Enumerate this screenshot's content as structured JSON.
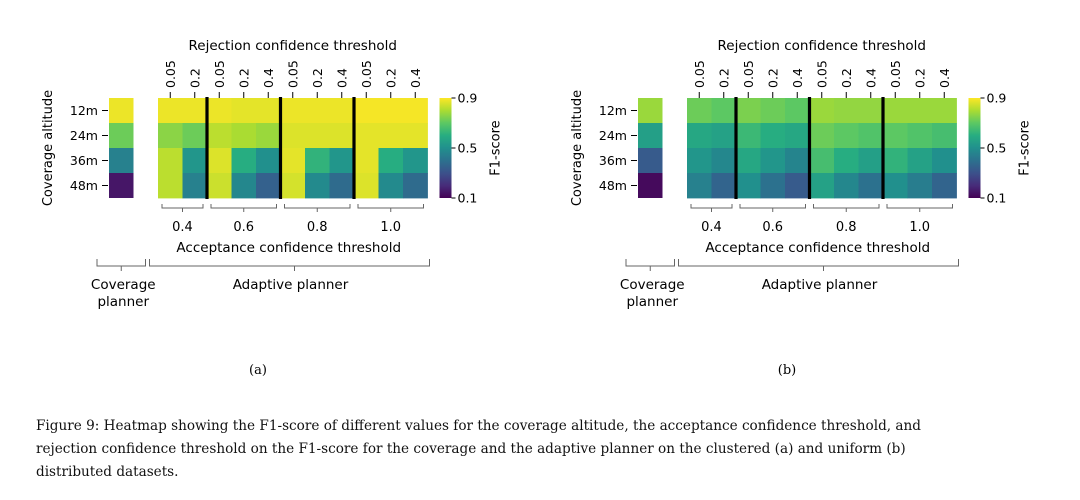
{
  "chart_data": [
    {
      "type": "heatmap",
      "panel_label": "(a)",
      "ylabel": "Coverage altitude",
      "y_categories": [
        "12m",
        "24m",
        "36m",
        "48m"
      ],
      "rejection_title": "Rejection confidence threshold",
      "acceptance_title": "Acceptance confidence threshold",
      "colorbar_label": "F1-score",
      "colorbar_ticks": [
        "0.9",
        "0.5",
        "0.1"
      ],
      "vmin": 0.1,
      "vmax": 0.9,
      "coverage_label_line1": "Coverage",
      "coverage_label_line2": "planner",
      "adaptive_label": "Adaptive planner",
      "coverage_values": [
        0.88,
        0.72,
        0.45,
        0.15
      ],
      "groups": [
        {
          "acceptance": "0.4",
          "rejection": [
            "0.05",
            "0.2"
          ],
          "values": [
            [
              0.88,
              0.88
            ],
            [
              0.76,
              0.72
            ],
            [
              0.82,
              0.52
            ],
            [
              0.82,
              0.45
            ]
          ]
        },
        {
          "acceptance": "0.6",
          "rejection": [
            "0.05",
            "0.2",
            "0.4"
          ],
          "values": [
            [
              0.88,
              0.87,
              0.87
            ],
            [
              0.82,
              0.8,
              0.78
            ],
            [
              0.86,
              0.6,
              0.5
            ],
            [
              0.84,
              0.47,
              0.35
            ]
          ]
        },
        {
          "acceptance": "0.8",
          "rejection": [
            "0.05",
            "0.2",
            "0.4"
          ],
          "values": [
            [
              0.88,
              0.88,
              0.88
            ],
            [
              0.86,
              0.86,
              0.86
            ],
            [
              0.87,
              0.62,
              0.52
            ],
            [
              0.85,
              0.48,
              0.38
            ]
          ]
        },
        {
          "acceptance": "1.0",
          "rejection": [
            "0.05",
            "0.2",
            "0.4"
          ],
          "values": [
            [
              0.89,
              0.89,
              0.89
            ],
            [
              0.87,
              0.87,
              0.87
            ],
            [
              0.87,
              0.6,
              0.52
            ],
            [
              0.86,
              0.48,
              0.38
            ]
          ]
        }
      ]
    },
    {
      "type": "heatmap",
      "panel_label": "(b)",
      "ylabel": "Coverage altitude",
      "y_categories": [
        "12m",
        "24m",
        "36m",
        "48m"
      ],
      "rejection_title": "Rejection confidence threshold",
      "acceptance_title": "Acceptance confidence threshold",
      "colorbar_label": "F1-score",
      "colorbar_ticks": [
        "0.9",
        "0.5",
        "0.1"
      ],
      "vmin": 0.1,
      "vmax": 0.9,
      "coverage_label_line1": "Coverage",
      "coverage_label_line2": "planner",
      "adaptive_label": "Adaptive planner",
      "coverage_values": [
        0.78,
        0.55,
        0.33,
        0.12
      ],
      "groups": [
        {
          "acceptance": "0.4",
          "rejection": [
            "0.05",
            "0.2"
          ],
          "values": [
            [
              0.72,
              0.7
            ],
            [
              0.58,
              0.56
            ],
            [
              0.52,
              0.47
            ],
            [
              0.45,
              0.36
            ]
          ]
        },
        {
          "acceptance": "0.6",
          "rejection": [
            "0.05",
            "0.2",
            "0.4"
          ],
          "values": [
            [
              0.74,
              0.72,
              0.7
            ],
            [
              0.64,
              0.6,
              0.58
            ],
            [
              0.58,
              0.52,
              0.46
            ],
            [
              0.5,
              0.4,
              0.33
            ]
          ]
        },
        {
          "acceptance": "0.8",
          "rejection": [
            "0.05",
            "0.2",
            "0.4"
          ],
          "values": [
            [
              0.78,
              0.77,
              0.77
            ],
            [
              0.72,
              0.7,
              0.68
            ],
            [
              0.66,
              0.6,
              0.55
            ],
            [
              0.56,
              0.47,
              0.4
            ]
          ]
        },
        {
          "acceptance": "1.0",
          "rejection": [
            "0.05",
            "0.2",
            "0.4"
          ],
          "values": [
            [
              0.78,
              0.78,
              0.78
            ],
            [
              0.7,
              0.68,
              0.66
            ],
            [
              0.62,
              0.56,
              0.5
            ],
            [
              0.5,
              0.44,
              0.36
            ]
          ]
        }
      ]
    }
  ],
  "caption": [
    "Figure 9: Heatmap showing the F1-score of different values for the coverage altitude, the acceptance confidence threshold, and",
    "rejection confidence threshold on the F1-score for the coverage and the adaptive planner on the clustered (a) and uniform (b)",
    "distributed datasets."
  ]
}
